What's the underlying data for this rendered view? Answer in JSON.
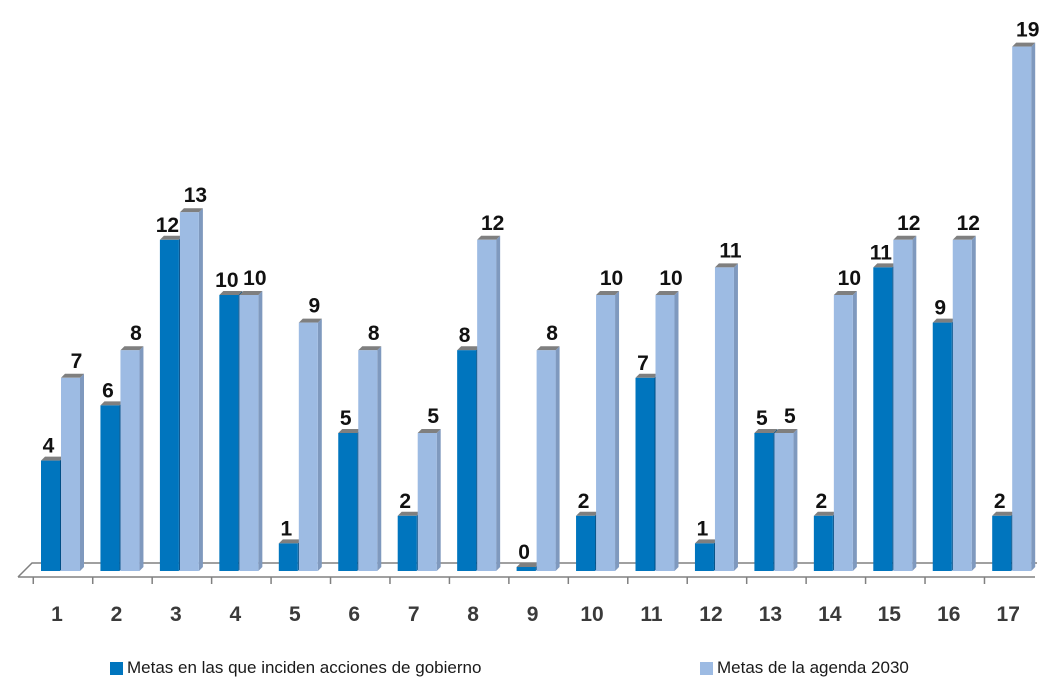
{
  "chart_data": {
    "type": "bar",
    "categories": [
      "1",
      "2",
      "3",
      "4",
      "5",
      "6",
      "7",
      "8",
      "9",
      "10",
      "11",
      "12",
      "13",
      "14",
      "15",
      "16",
      "17"
    ],
    "series": [
      {
        "name": "Metas en las que inciden acciones de gobierno",
        "values": [
          4,
          6,
          12,
          10,
          1,
          5,
          2,
          8,
          0,
          2,
          7,
          1,
          5,
          2,
          11,
          9,
          2
        ]
      },
      {
        "name": "Metas de la agenda 2030",
        "values": [
          7,
          8,
          13,
          10,
          9,
          8,
          5,
          12,
          8,
          10,
          10,
          11,
          5,
          10,
          12,
          12,
          19
        ]
      }
    ],
    "ylim": [
      0,
      19
    ],
    "grid": false,
    "legend_position": "bottom",
    "colors": {
      "series1": "#0075BE",
      "series1_side": "#004E86",
      "series2": "#9DBBE3",
      "series2_side": "#7F99BE",
      "top": "#7F7F7F",
      "axis": "#808080"
    }
  }
}
